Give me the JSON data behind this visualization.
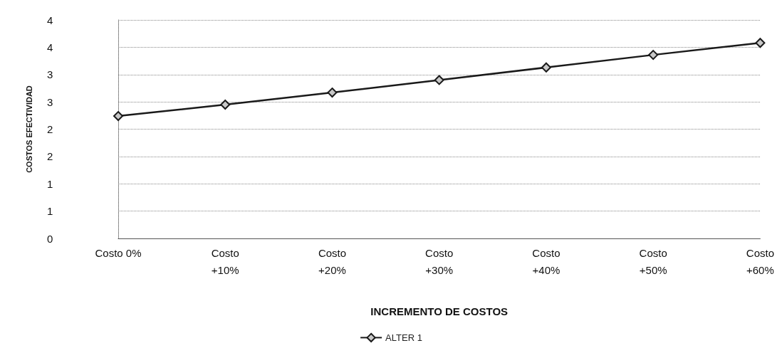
{
  "chart_data": {
    "type": "line",
    "xlabel": "INCREMENTO DE COSTOS",
    "ylabel": "COSTOS EFECTIVIDAD",
    "categories": [
      "Costo 0%",
      "Costo\n+10%",
      "Costo\n+20%",
      "Costo\n+30%",
      "Costo\n+40%",
      "Costo\n+50%",
      "Costo\n+60%"
    ],
    "series": [
      {
        "name": "ALTER 1",
        "color": "#1a1a1a",
        "values": [
          2.24,
          2.45,
          2.67,
          2.9,
          3.13,
          3.36,
          3.58
        ]
      }
    ],
    "ylim": [
      0,
      4
    ],
    "yticks": [
      0,
      {
        "value": 0.5,
        "label": "1"
      },
      1,
      {
        "value": 1.5,
        "label": "2"
      },
      2,
      {
        "value": 2.5,
        "label": "3"
      },
      3,
      {
        "value": 3.5,
        "label": "4"
      },
      4
    ],
    "grid": "y",
    "legend": "bottom",
    "marker": "diamond",
    "line_style": "solid"
  }
}
